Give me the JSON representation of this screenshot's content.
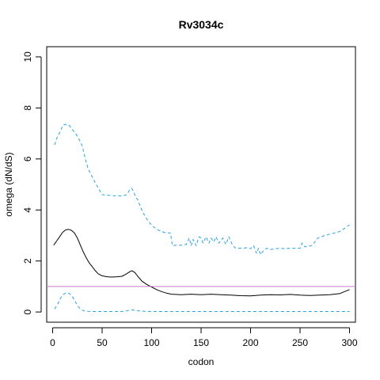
{
  "chart_data": {
    "type": "line",
    "title": "Rv3034c",
    "xlabel": "codon",
    "ylabel": "omega (dN/dS)",
    "xlim": [
      -6,
      306
    ],
    "ylim": [
      -0.4,
      10.4
    ],
    "x_ticks": [
      0,
      50,
      100,
      150,
      200,
      250,
      300
    ],
    "y_ticks": [
      0,
      2,
      4,
      6,
      8,
      10
    ],
    "grid": false,
    "reference_line": {
      "y": 1,
      "color": "#c77cc7"
    },
    "series": [
      {
        "color": "#000000",
        "style": "solid",
        "x": [
          1,
          4,
          7,
          10,
          13,
          16,
          19,
          22,
          25,
          28,
          31,
          34,
          37,
          40,
          43,
          46,
          50,
          55,
          60,
          65,
          70,
          74,
          78,
          80,
          83,
          86,
          90,
          95,
          100,
          105,
          110,
          115,
          120,
          130,
          140,
          150,
          160,
          170,
          180,
          190,
          200,
          210,
          220,
          230,
          240,
          250,
          260,
          270,
          280,
          290,
          295,
          300
        ],
        "y": [
          2.62,
          2.78,
          2.95,
          3.12,
          3.22,
          3.24,
          3.2,
          3.1,
          2.9,
          2.62,
          2.35,
          2.12,
          1.92,
          1.78,
          1.62,
          1.5,
          1.42,
          1.38,
          1.37,
          1.38,
          1.4,
          1.48,
          1.58,
          1.62,
          1.55,
          1.4,
          1.22,
          1.08,
          0.98,
          0.88,
          0.8,
          0.74,
          0.7,
          0.68,
          0.7,
          0.68,
          0.7,
          0.68,
          0.66,
          0.64,
          0.63,
          0.66,
          0.68,
          0.67,
          0.69,
          0.66,
          0.65,
          0.66,
          0.68,
          0.72,
          0.8,
          0.88
        ]
      },
      {
        "color": "#29a3e0",
        "style": "dashed",
        "x": [
          2,
          4,
          6,
          8,
          10,
          12,
          16,
          20,
          24,
          27,
          30,
          33,
          36,
          40,
          44,
          47,
          50,
          55,
          60,
          65,
          70,
          75,
          78,
          80,
          82,
          84,
          86,
          88,
          90,
          92,
          95,
          98,
          100,
          105,
          110,
          115,
          119,
          121,
          125,
          130,
          135,
          138,
          140,
          142,
          145,
          148,
          150,
          152,
          155,
          158,
          160,
          163,
          165,
          168,
          172,
          175,
          178,
          182,
          185,
          188,
          192,
          196,
          200,
          203,
          206,
          208,
          210,
          213,
          216,
          220,
          225,
          230,
          235,
          240,
          245,
          250,
          252,
          255,
          258,
          262,
          265,
          268,
          272,
          275,
          280,
          285,
          290,
          295,
          300
        ],
        "y": [
          6.55,
          6.8,
          6.95,
          7.1,
          7.3,
          7.35,
          7.35,
          7.15,
          6.95,
          6.75,
          6.5,
          6.0,
          5.6,
          5.3,
          5.0,
          4.8,
          4.6,
          4.58,
          4.56,
          4.56,
          4.55,
          4.6,
          4.8,
          4.85,
          4.7,
          4.5,
          4.4,
          4.2,
          4.0,
          3.85,
          3.65,
          3.5,
          3.4,
          3.25,
          3.15,
          3.1,
          3.1,
          2.6,
          2.62,
          2.62,
          2.65,
          2.9,
          2.6,
          2.85,
          2.6,
          2.95,
          2.9,
          2.7,
          2.95,
          2.7,
          2.9,
          2.75,
          2.95,
          2.7,
          2.9,
          2.65,
          2.95,
          2.6,
          2.5,
          2.5,
          2.5,
          2.52,
          2.48,
          2.6,
          2.3,
          2.5,
          2.25,
          2.4,
          2.5,
          2.45,
          2.48,
          2.5,
          2.48,
          2.5,
          2.5,
          2.5,
          2.7,
          2.55,
          2.58,
          2.6,
          2.75,
          2.9,
          2.95,
          3.0,
          3.05,
          3.1,
          3.15,
          3.28,
          3.42
        ]
      },
      {
        "color": "#29a3e0",
        "style": "dashed",
        "x": [
          2,
          5,
          8,
          11,
          14,
          17,
          20,
          23,
          25,
          28,
          31,
          35,
          40,
          50,
          60,
          70,
          75,
          80,
          85,
          90,
          100,
          110,
          120,
          150,
          200,
          250,
          300
        ],
        "y": [
          0.12,
          0.3,
          0.55,
          0.7,
          0.75,
          0.72,
          0.6,
          0.4,
          0.25,
          0.12,
          0.05,
          0.03,
          0.02,
          0.02,
          0.02,
          0.02,
          0.05,
          0.08,
          0.06,
          0.03,
          0.02,
          0.02,
          0.02,
          0.02,
          0.02,
          0.02,
          0.02
        ]
      }
    ]
  }
}
